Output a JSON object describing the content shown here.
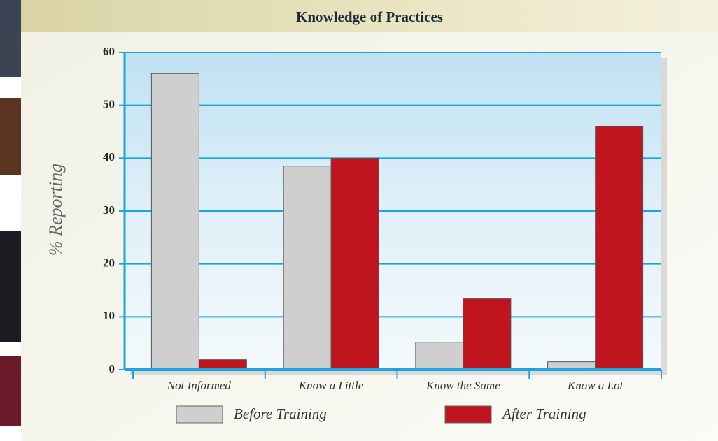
{
  "chart_data": {
    "type": "bar",
    "title": "Knowledge of Practices",
    "y_label": "% Reporting",
    "categories": [
      "Not Informed",
      "Know a Little",
      "Know the Same",
      "Know a Lot"
    ],
    "series": [
      {
        "name": "Before Training",
        "color": "#cfcfcf",
        "values": [
          56,
          38.5,
          5.2,
          1.5
        ]
      },
      {
        "name": "After Training",
        "color": "#c0141e",
        "values": [
          1.9,
          40,
          13.4,
          46
        ]
      }
    ],
    "ylim": [
      0,
      60
    ],
    "yticks": [
      0,
      10,
      20,
      30,
      40,
      50,
      60
    ],
    "grid": true,
    "legend": "bottom"
  }
}
